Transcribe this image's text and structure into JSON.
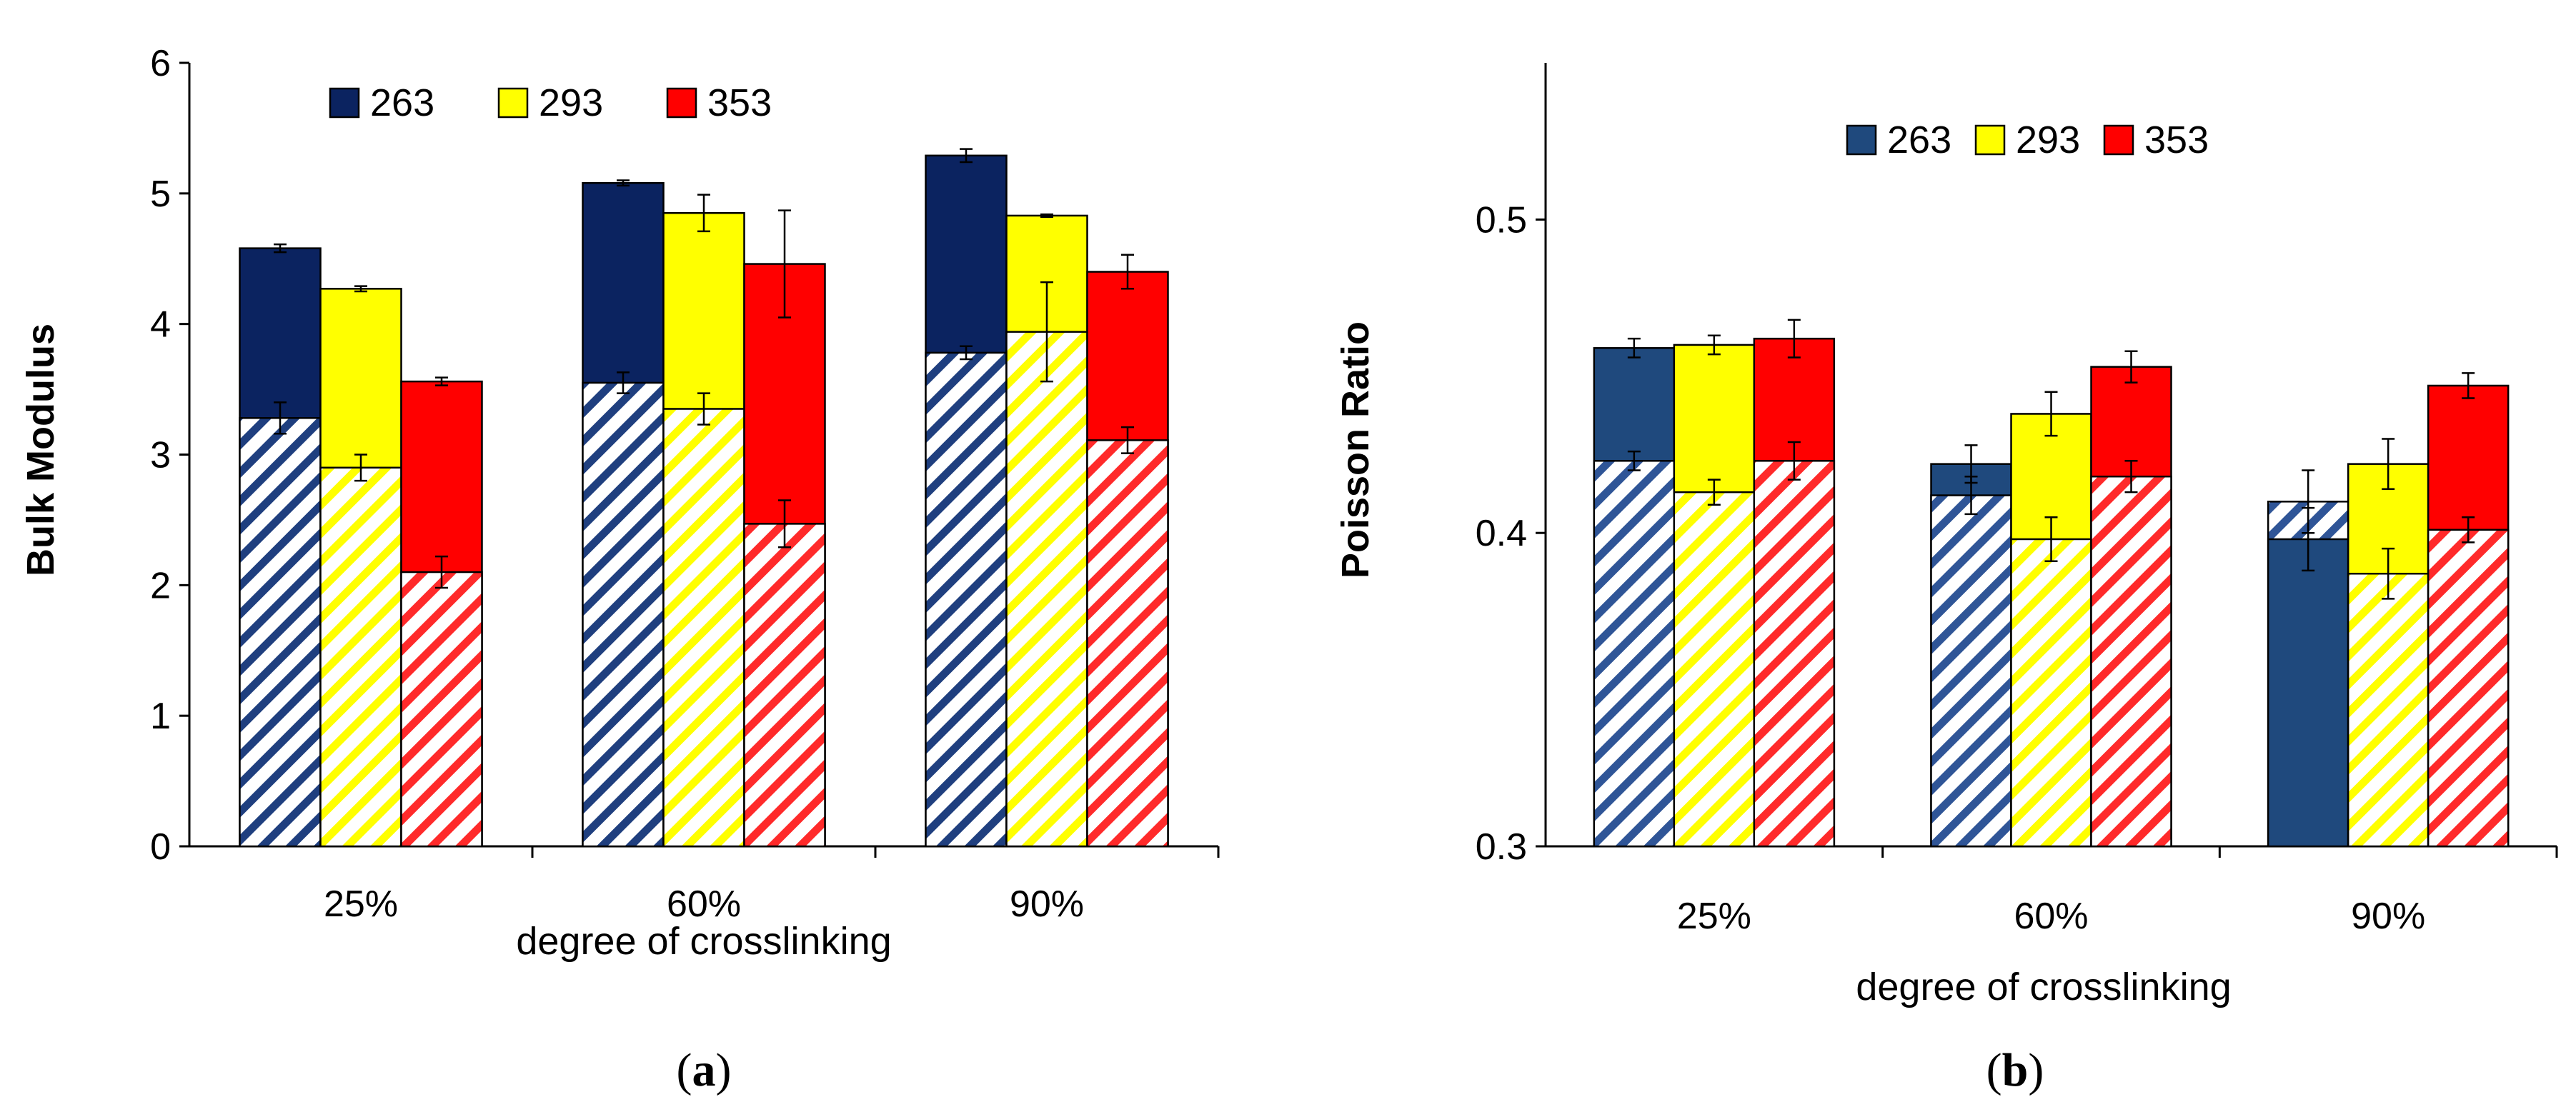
{
  "colors": {
    "263_a": "#0b2360",
    "263_b": "#1f497d",
    "293": "#ffff00",
    "353": "#ff0000",
    "263_hatch_a": "#1f3f7f",
    "263_hatch_b": "#2f5597",
    "293_hatch": "#ffff00",
    "353_hatch": "#ff2a2a"
  },
  "chart_data": [
    {
      "panel": "a",
      "type": "bar",
      "xlabel": "degree of crosslinking",
      "ylabel": "Bulk Modulus",
      "ylim": [
        0,
        6
      ],
      "yticks": [
        "0",
        "1",
        "2",
        "3",
        "4",
        "5",
        "6"
      ],
      "categories": [
        "25%",
        "60%",
        "90%"
      ],
      "legend": {
        "position": "top",
        "entries": [
          "263",
          "293",
          "353"
        ]
      },
      "series": [
        {
          "name": "263",
          "solid": [
            4.58,
            5.08,
            5.29
          ],
          "solid_err": [
            0.03,
            0.02,
            0.05
          ],
          "hatched": [
            3.28,
            3.55,
            3.78
          ],
          "hatched_err": [
            0.12,
            0.08,
            0.05
          ]
        },
        {
          "name": "293",
          "solid": [
            4.27,
            4.85,
            4.83
          ],
          "solid_err": [
            0.02,
            0.14,
            0.01
          ],
          "hatched": [
            2.9,
            3.35,
            3.94
          ],
          "hatched_err": [
            0.1,
            0.12,
            0.38
          ]
        },
        {
          "name": "353",
          "solid": [
            3.56,
            4.46,
            4.4
          ],
          "solid_err": [
            0.03,
            0.41,
            0.13
          ],
          "hatched": [
            2.1,
            2.47,
            3.11
          ],
          "hatched_err": [
            0.12,
            0.18,
            0.1
          ]
        }
      ],
      "panel_label": {
        "open": "(",
        "letter": "a",
        "close": ")"
      }
    },
    {
      "panel": "b",
      "type": "bar",
      "xlabel": "degree of crosslinking",
      "ylabel": "Poisson Ratio",
      "ylim": [
        0.3,
        0.55
      ],
      "yticks": [
        "0.3",
        "0.4",
        "0.5"
      ],
      "yticks_values": [
        0.3,
        0.4,
        0.5
      ],
      "categories": [
        "25%",
        "60%",
        "90%"
      ],
      "legend": {
        "position": "top",
        "entries": [
          "263",
          "293",
          "353"
        ]
      },
      "series": [
        {
          "name": "263",
          "solid": [
            0.459,
            0.422,
            0.41
          ],
          "solid_err": [
            0.003,
            0.006,
            0.01
          ],
          "hatched": [
            0.423,
            0.412,
            0.398
          ],
          "hatched_err": [
            0.003,
            0.006,
            0.01
          ],
          "hatched_on_top_in_90": true
        },
        {
          "name": "293",
          "solid": [
            0.46,
            0.438,
            0.422
          ],
          "solid_err": [
            0.003,
            0.007,
            0.008
          ],
          "hatched": [
            0.413,
            0.398,
            0.387
          ],
          "hatched_err": [
            0.004,
            0.007,
            0.008
          ]
        },
        {
          "name": "353",
          "solid": [
            0.462,
            0.453,
            0.447
          ],
          "solid_err": [
            0.006,
            0.005,
            0.004
          ],
          "hatched": [
            0.423,
            0.418,
            0.401
          ],
          "hatched_err": [
            0.006,
            0.005,
            0.004
          ]
        }
      ],
      "panel_label": {
        "open": "(",
        "letter": "b",
        "close": ")"
      }
    }
  ]
}
